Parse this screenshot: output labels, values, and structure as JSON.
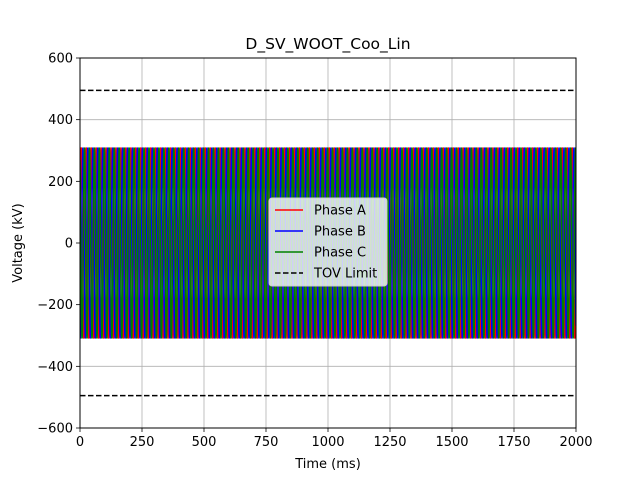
{
  "chart_data": {
    "type": "line",
    "title": "D_SV_WOOT_Coo_Lin",
    "xlabel": "Time (ms)",
    "ylabel": "Voltage (kV)",
    "xlim": [
      0,
      2000
    ],
    "ylim": [
      -600,
      600
    ],
    "xticks": [
      0,
      250,
      500,
      750,
      1000,
      1250,
      1500,
      1750,
      2000
    ],
    "xtick_labels": [
      "0",
      "250",
      "500",
      "750",
      "1000",
      "1250",
      "1500",
      "1750",
      "2000"
    ],
    "yticks": [
      -600,
      -400,
      -200,
      0,
      200,
      400,
      600
    ],
    "ytick_labels": [
      "−600",
      "−400",
      "−200",
      "0",
      "200",
      "400",
      "600"
    ],
    "grid": true,
    "legend_position": "center",
    "series": [
      {
        "name": "Phase A",
        "color": "#ff0000",
        "style": "solid",
        "kind": "sine",
        "amplitude": 310,
        "frequency_hz": 50,
        "phase_deg": 0
      },
      {
        "name": "Phase B",
        "color": "#0000ff",
        "style": "solid",
        "kind": "sine",
        "amplitude": 310,
        "frequency_hz": 50,
        "phase_deg": -120
      },
      {
        "name": "Phase C",
        "color": "#008000",
        "style": "solid",
        "kind": "sine",
        "amplitude": 310,
        "frequency_hz": 50,
        "phase_deg": 120
      },
      {
        "name": "TOV Limit",
        "color": "#000000",
        "style": "dashed",
        "kind": "constant",
        "values": [
          495,
          -495
        ]
      }
    ]
  }
}
